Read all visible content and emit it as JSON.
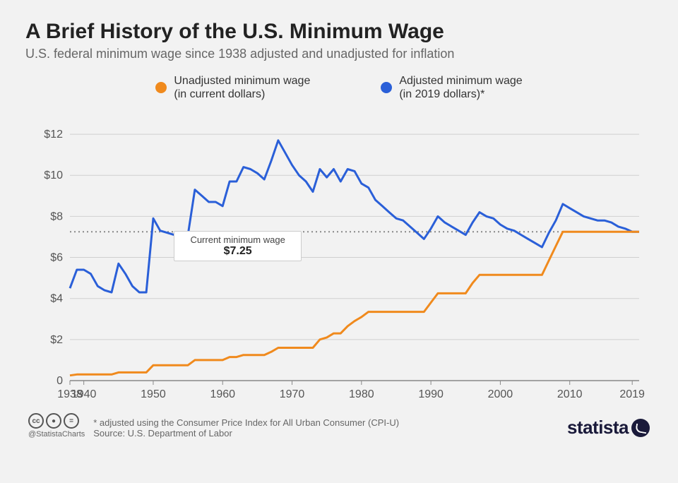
{
  "title": "A Brief History of the U.S. Minimum Wage",
  "subtitle": "U.S. federal minimum wage since 1938 adjusted and unadjusted for inflation",
  "legend": {
    "unadjusted": {
      "label": "Unadjusted minimum wage",
      "sublabel": "(in current dollars)",
      "color": "#f08a1d"
    },
    "adjusted": {
      "label": "Adjusted minimum wage",
      "sublabel": "(in 2019 dollars)*",
      "color": "#2a5fd8"
    }
  },
  "chart": {
    "type": "line",
    "background_color": "#f2f2f2",
    "grid_color": "#cfcfcf",
    "axis_color": "#888",
    "text_color": "#555",
    "tick_fontsize": 16,
    "line_width": 3,
    "xlim": [
      1938,
      2020
    ],
    "ylim": [
      0,
      13
    ],
    "y_ticks": [
      0,
      2,
      4,
      6,
      8,
      10,
      12
    ],
    "y_tick_labels": [
      "0",
      "$2",
      "$4",
      "$6",
      "$8",
      "$10",
      "$12"
    ],
    "x_ticks": [
      1938,
      1940,
      1950,
      1960,
      1970,
      1980,
      1990,
      2000,
      2010,
      2019
    ],
    "x_tick_labels": [
      "1938",
      "1940",
      "1950",
      "1960",
      "1970",
      "1980",
      "1990",
      "2000",
      "2010",
      "2019"
    ],
    "reference_line": {
      "value": 7.25,
      "color": "#888",
      "dash": "2,4"
    },
    "callout": {
      "label": "Current minimum wage",
      "value": "$7.25"
    },
    "series": {
      "unadjusted": {
        "color": "#f08a1d",
        "points": [
          [
            1938,
            0.25
          ],
          [
            1939,
            0.3
          ],
          [
            1940,
            0.3
          ],
          [
            1941,
            0.3
          ],
          [
            1942,
            0.3
          ],
          [
            1943,
            0.3
          ],
          [
            1944,
            0.3
          ],
          [
            1945,
            0.4
          ],
          [
            1946,
            0.4
          ],
          [
            1947,
            0.4
          ],
          [
            1948,
            0.4
          ],
          [
            1949,
            0.4
          ],
          [
            1950,
            0.75
          ],
          [
            1951,
            0.75
          ],
          [
            1952,
            0.75
          ],
          [
            1953,
            0.75
          ],
          [
            1954,
            0.75
          ],
          [
            1955,
            0.75
          ],
          [
            1956,
            1.0
          ],
          [
            1957,
            1.0
          ],
          [
            1958,
            1.0
          ],
          [
            1959,
            1.0
          ],
          [
            1960,
            1.0
          ],
          [
            1961,
            1.15
          ],
          [
            1962,
            1.15
          ],
          [
            1963,
            1.25
          ],
          [
            1964,
            1.25
          ],
          [
            1965,
            1.25
          ],
          [
            1966,
            1.25
          ],
          [
            1967,
            1.4
          ],
          [
            1968,
            1.6
          ],
          [
            1969,
            1.6
          ],
          [
            1970,
            1.6
          ],
          [
            1971,
            1.6
          ],
          [
            1972,
            1.6
          ],
          [
            1973,
            1.6
          ],
          [
            1974,
            2.0
          ],
          [
            1975,
            2.1
          ],
          [
            1976,
            2.3
          ],
          [
            1977,
            2.3
          ],
          [
            1978,
            2.65
          ],
          [
            1979,
            2.9
          ],
          [
            1980,
            3.1
          ],
          [
            1981,
            3.35
          ],
          [
            1982,
            3.35
          ],
          [
            1983,
            3.35
          ],
          [
            1984,
            3.35
          ],
          [
            1985,
            3.35
          ],
          [
            1986,
            3.35
          ],
          [
            1987,
            3.35
          ],
          [
            1988,
            3.35
          ],
          [
            1989,
            3.35
          ],
          [
            1990,
            3.8
          ],
          [
            1991,
            4.25
          ],
          [
            1992,
            4.25
          ],
          [
            1993,
            4.25
          ],
          [
            1994,
            4.25
          ],
          [
            1995,
            4.25
          ],
          [
            1996,
            4.75
          ],
          [
            1997,
            5.15
          ],
          [
            1998,
            5.15
          ],
          [
            1999,
            5.15
          ],
          [
            2000,
            5.15
          ],
          [
            2001,
            5.15
          ],
          [
            2002,
            5.15
          ],
          [
            2003,
            5.15
          ],
          [
            2004,
            5.15
          ],
          [
            2005,
            5.15
          ],
          [
            2006,
            5.15
          ],
          [
            2007,
            5.85
          ],
          [
            2008,
            6.55
          ],
          [
            2009,
            7.25
          ],
          [
            2010,
            7.25
          ],
          [
            2011,
            7.25
          ],
          [
            2012,
            7.25
          ],
          [
            2013,
            7.25
          ],
          [
            2014,
            7.25
          ],
          [
            2015,
            7.25
          ],
          [
            2016,
            7.25
          ],
          [
            2017,
            7.25
          ],
          [
            2018,
            7.25
          ],
          [
            2019,
            7.25
          ],
          [
            2020,
            7.25
          ]
        ]
      },
      "adjusted": {
        "color": "#2a5fd8",
        "points": [
          [
            1938,
            4.5
          ],
          [
            1939,
            5.4
          ],
          [
            1940,
            5.4
          ],
          [
            1941,
            5.2
          ],
          [
            1942,
            4.6
          ],
          [
            1943,
            4.4
          ],
          [
            1944,
            4.3
          ],
          [
            1945,
            5.7
          ],
          [
            1946,
            5.2
          ],
          [
            1947,
            4.6
          ],
          [
            1948,
            4.3
          ],
          [
            1949,
            4.3
          ],
          [
            1950,
            7.9
          ],
          [
            1951,
            7.3
          ],
          [
            1952,
            7.2
          ],
          [
            1953,
            7.1
          ],
          [
            1954,
            7.1
          ],
          [
            1955,
            7.1
          ],
          [
            1956,
            9.3
          ],
          [
            1957,
            9.0
          ],
          [
            1958,
            8.7
          ],
          [
            1959,
            8.7
          ],
          [
            1960,
            8.5
          ],
          [
            1961,
            9.7
          ],
          [
            1962,
            9.7
          ],
          [
            1963,
            10.4
          ],
          [
            1964,
            10.3
          ],
          [
            1965,
            10.1
          ],
          [
            1966,
            9.8
          ],
          [
            1967,
            10.7
          ],
          [
            1968,
            11.7
          ],
          [
            1969,
            11.1
          ],
          [
            1970,
            10.5
          ],
          [
            1971,
            10.0
          ],
          [
            1972,
            9.7
          ],
          [
            1973,
            9.2
          ],
          [
            1974,
            10.3
          ],
          [
            1975,
            9.9
          ],
          [
            1976,
            10.3
          ],
          [
            1977,
            9.7
          ],
          [
            1978,
            10.3
          ],
          [
            1979,
            10.2
          ],
          [
            1980,
            9.6
          ],
          [
            1981,
            9.4
          ],
          [
            1982,
            8.8
          ],
          [
            1983,
            8.5
          ],
          [
            1984,
            8.2
          ],
          [
            1985,
            7.9
          ],
          [
            1986,
            7.8
          ],
          [
            1987,
            7.5
          ],
          [
            1988,
            7.2
          ],
          [
            1989,
            6.9
          ],
          [
            1990,
            7.4
          ],
          [
            1991,
            8.0
          ],
          [
            1992,
            7.7
          ],
          [
            1993,
            7.5
          ],
          [
            1994,
            7.3
          ],
          [
            1995,
            7.1
          ],
          [
            1996,
            7.7
          ],
          [
            1997,
            8.2
          ],
          [
            1998,
            8.0
          ],
          [
            1999,
            7.9
          ],
          [
            2000,
            7.6
          ],
          [
            2001,
            7.4
          ],
          [
            2002,
            7.3
          ],
          [
            2003,
            7.1
          ],
          [
            2004,
            6.9
          ],
          [
            2005,
            6.7
          ],
          [
            2006,
            6.5
          ],
          [
            2007,
            7.2
          ],
          [
            2008,
            7.8
          ],
          [
            2009,
            8.6
          ],
          [
            2010,
            8.4
          ],
          [
            2011,
            8.2
          ],
          [
            2012,
            8.0
          ],
          [
            2013,
            7.9
          ],
          [
            2014,
            7.8
          ],
          [
            2015,
            7.8
          ],
          [
            2016,
            7.7
          ],
          [
            2017,
            7.5
          ],
          [
            2018,
            7.4
          ],
          [
            2019,
            7.25
          ],
          [
            2020,
            7.25
          ]
        ]
      }
    }
  },
  "footnote": "* adjusted using the Consumer Price Index for All Urban Consumer (CPI-U)",
  "source": "Source: U.S. Department of Labor",
  "attribution": "@StatistaCharts",
  "brand": "statista"
}
